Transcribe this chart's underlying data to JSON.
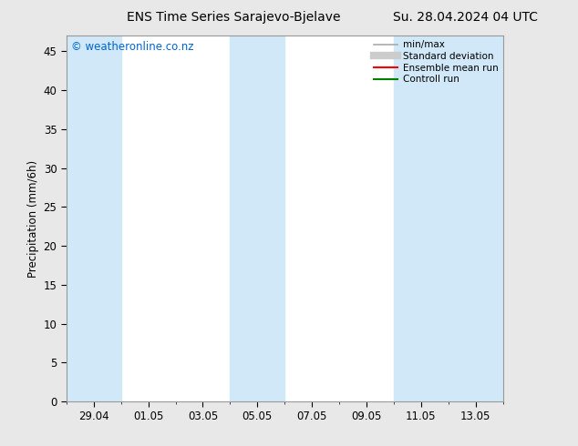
{
  "title_left": "ENS Time Series Sarajevo-Bjelave",
  "title_right": "Su. 28.04.2024 04 UTC",
  "ylabel": "Precipitation (mm/6h)",
  "watermark": "© weatheronline.co.nz",
  "x_tick_labels": [
    "29.04",
    "01.05",
    "03.05",
    "05.05",
    "07.05",
    "09.05",
    "11.05",
    "13.05"
  ],
  "ylim": [
    0,
    47
  ],
  "yticks": [
    0,
    5,
    10,
    15,
    20,
    25,
    30,
    35,
    40,
    45
  ],
  "bg_color": "#e8e8e8",
  "plot_bg_color": "#ffffff",
  "shaded_color": "#d0e8f8",
  "legend_items": [
    {
      "label": "min/max",
      "color": "#aaaaaa",
      "lw": 1.2,
      "style": "solid",
      "marker": "none"
    },
    {
      "label": "Standard deviation",
      "color": "#cccccc",
      "lw": 6,
      "style": "solid",
      "marker": "none"
    },
    {
      "label": "Ensemble mean run",
      "color": "#ff0000",
      "lw": 1.5,
      "style": "solid",
      "marker": "none"
    },
    {
      "label": "Controll run",
      "color": "#008000",
      "lw": 1.5,
      "style": "solid",
      "marker": "none"
    }
  ],
  "tick_label_fontsize": 8.5,
  "title_fontsize": 10,
  "ylabel_fontsize": 8.5,
  "watermark_color": "#0066cc",
  "watermark_fontsize": 8.5
}
